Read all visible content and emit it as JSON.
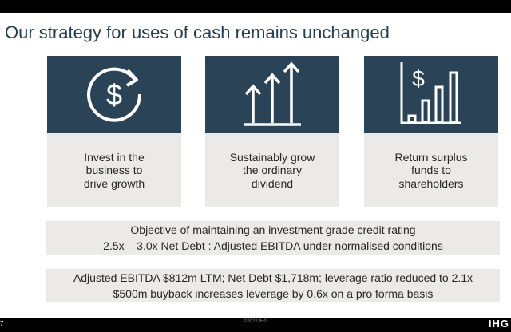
{
  "slide": {
    "title": "Our strategy for uses of cash remains unchanged",
    "cards": [
      {
        "icon": "dollar-cycle-icon",
        "text": "Invest in the\nbusiness to\ndrive growth"
      },
      {
        "icon": "growth-arrows-icon",
        "text": "Sustainably grow\nthe ordinary\ndividend"
      },
      {
        "icon": "dollar-bar-chart-icon",
        "text": "Return surplus\nfunds to\nshareholders"
      }
    ],
    "bands": [
      {
        "line1": "Objective of maintaining an investment grade credit rating",
        "line2": "2.5x – 3.0x Net Debt : Adjusted EBITDA under normalised conditions"
      },
      {
        "line1": "Adjusted EBITDA $812m LTM; Net Debt $1,718m; leverage ratio reduced to 2.1x",
        "line2": "$500m buyback increases leverage by 0.6x on a pro forma basis"
      }
    ]
  },
  "footer": {
    "copyright": "©2022 IHG",
    "page_marker": "7",
    "logo": "IHG"
  },
  "colors": {
    "card_top": "#2a4356",
    "card_bottom": "#ebeae8",
    "title": "#243e52",
    "icon": "#ffffff"
  }
}
